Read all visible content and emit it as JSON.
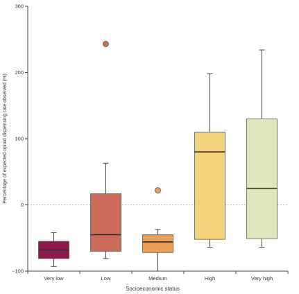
{
  "chart_data": {
    "type": "box",
    "title": "",
    "xlabel": "Socioeconomic status",
    "ylabel": "Percentage of expected opioid dispensing rate observed (%)",
    "ylim": [
      -100,
      300
    ],
    "yticks": [
      -100,
      0,
      100,
      200,
      300
    ],
    "reference_line": 0,
    "categories": [
      "Very low",
      "Low",
      "Medium",
      "High",
      "Very high"
    ],
    "boxes": [
      {
        "category": "Very low",
        "whisker_low": -93,
        "q1": -81,
        "median": -68,
        "q3": -55,
        "whisker_high": -42,
        "outliers": [],
        "color": "#8e1a4b"
      },
      {
        "category": "Low",
        "whisker_low": -81,
        "q1": -70,
        "median": -45,
        "q3": 17,
        "whisker_high": 63,
        "outliers": [
          243
        ],
        "color": "#cd6b5a"
      },
      {
        "category": "Medium",
        "whisker_low": -100,
        "q1": -72,
        "median": -56,
        "q3": -45,
        "whisker_high": -37,
        "outliers": [
          22
        ],
        "color": "#ec9f57"
      },
      {
        "category": "High",
        "whisker_low": -64,
        "q1": -52,
        "median": 80,
        "q3": 110,
        "whisker_high": 198,
        "outliers": [],
        "color": "#f2d37a"
      },
      {
        "category": "Very high",
        "whisker_low": -64,
        "q1": -51,
        "median": 25,
        "q3": 130,
        "whisker_high": 234,
        "outliers": [],
        "color": "#dfe6bc"
      }
    ]
  }
}
